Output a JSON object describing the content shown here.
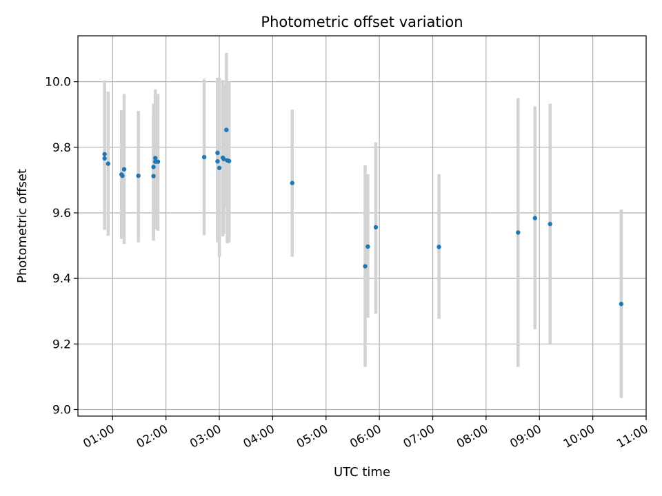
{
  "chart_data": {
    "type": "scatter",
    "title": "Photometric offset variation",
    "xlabel": "UTC time",
    "ylabel": "Photometric offset",
    "xlim": [
      "00:21",
      "11:00"
    ],
    "ylim": [
      8.98,
      10.14
    ],
    "grid": true,
    "x_ticks": [
      "01:00",
      "02:00",
      "03:00",
      "04:00",
      "05:00",
      "06:00",
      "07:00",
      "08:00",
      "09:00",
      "10:00",
      "11:00"
    ],
    "y_ticks": [
      9.0,
      9.2,
      9.4,
      9.6,
      9.8,
      10.0
    ],
    "y_tick_labels": [
      "9.0",
      "9.2",
      "9.4",
      "9.6",
      "9.8",
      "10.0"
    ],
    "colors": {
      "point": "#1f77b4",
      "errorbar": "#d3d3d3",
      "grid": "#b0b0b0",
      "axes": "#000000"
    },
    "points": [
      {
        "x": "00:51",
        "y": 9.779,
        "yerr_low": 9.548,
        "yerr_high": 10.004
      },
      {
        "x": "00:51",
        "y": 9.766,
        "yerr_low": 9.55,
        "yerr_high": 9.98
      },
      {
        "x": "00:55",
        "y": 9.75,
        "yerr_low": 9.53,
        "yerr_high": 9.97
      },
      {
        "x": "01:10",
        "y": 9.717,
        "yerr_low": 9.52,
        "yerr_high": 9.913
      },
      {
        "x": "01:11",
        "y": 9.713,
        "yerr_low": 9.525,
        "yerr_high": 9.9
      },
      {
        "x": "01:13",
        "y": 9.733,
        "yerr_low": 9.505,
        "yerr_high": 9.963
      },
      {
        "x": "01:29",
        "y": 9.713,
        "yerr_low": 9.51,
        "yerr_high": 9.911
      },
      {
        "x": "01:46",
        "y": 9.712,
        "yerr_low": 9.515,
        "yerr_high": 9.89
      },
      {
        "x": "01:46",
        "y": 9.74,
        "yerr_low": 9.53,
        "yerr_high": 9.933
      },
      {
        "x": "01:48",
        "y": 9.767,
        "yerr_low": 9.55,
        "yerr_high": 9.976
      },
      {
        "x": "01:48",
        "y": 9.756,
        "yerr_low": 9.55,
        "yerr_high": 9.96
      },
      {
        "x": "01:51",
        "y": 9.756,
        "yerr_low": 9.545,
        "yerr_high": 9.963
      },
      {
        "x": "02:43",
        "y": 9.77,
        "yerr_low": 9.532,
        "yerr_high": 10.009
      },
      {
        "x": "02:58",
        "y": 9.783,
        "yerr_low": 9.51,
        "yerr_high": 10.012
      },
      {
        "x": "02:58",
        "y": 9.757,
        "yerr_low": 9.52,
        "yerr_high": 10.0
      },
      {
        "x": "03:00",
        "y": 9.737,
        "yerr_low": 9.466,
        "yerr_high": 10.012
      },
      {
        "x": "03:04",
        "y": 9.768,
        "yerr_low": 9.528,
        "yerr_high": 10.005
      },
      {
        "x": "03:05",
        "y": 9.764,
        "yerr_low": 9.535,
        "yerr_high": 9.99
      },
      {
        "x": "03:08",
        "y": 9.853,
        "yerr_low": 9.62,
        "yerr_high": 10.088
      },
      {
        "x": "03:09",
        "y": 9.76,
        "yerr_low": 9.507,
        "yerr_high": 10.0
      },
      {
        "x": "03:11",
        "y": 9.758,
        "yerr_low": 9.51,
        "yerr_high": 10.0
      },
      {
        "x": "04:22",
        "y": 9.691,
        "yerr_low": 9.466,
        "yerr_high": 9.915
      },
      {
        "x": "05:44",
        "y": 9.437,
        "yerr_low": 9.13,
        "yerr_high": 9.745
      },
      {
        "x": "05:47",
        "y": 9.497,
        "yerr_low": 9.28,
        "yerr_high": 9.718
      },
      {
        "x": "05:56",
        "y": 9.556,
        "yerr_low": 9.292,
        "yerr_high": 9.815
      },
      {
        "x": "07:07",
        "y": 9.496,
        "yerr_low": 9.277,
        "yerr_high": 9.718
      },
      {
        "x": "08:36",
        "y": 9.54,
        "yerr_low": 9.13,
        "yerr_high": 9.95
      },
      {
        "x": "08:55",
        "y": 9.584,
        "yerr_low": 9.245,
        "yerr_high": 9.925
      },
      {
        "x": "09:12",
        "y": 9.566,
        "yerr_low": 9.2,
        "yerr_high": 9.933
      },
      {
        "x": "10:32",
        "y": 9.322,
        "yerr_low": 9.035,
        "yerr_high": 9.61
      }
    ]
  }
}
